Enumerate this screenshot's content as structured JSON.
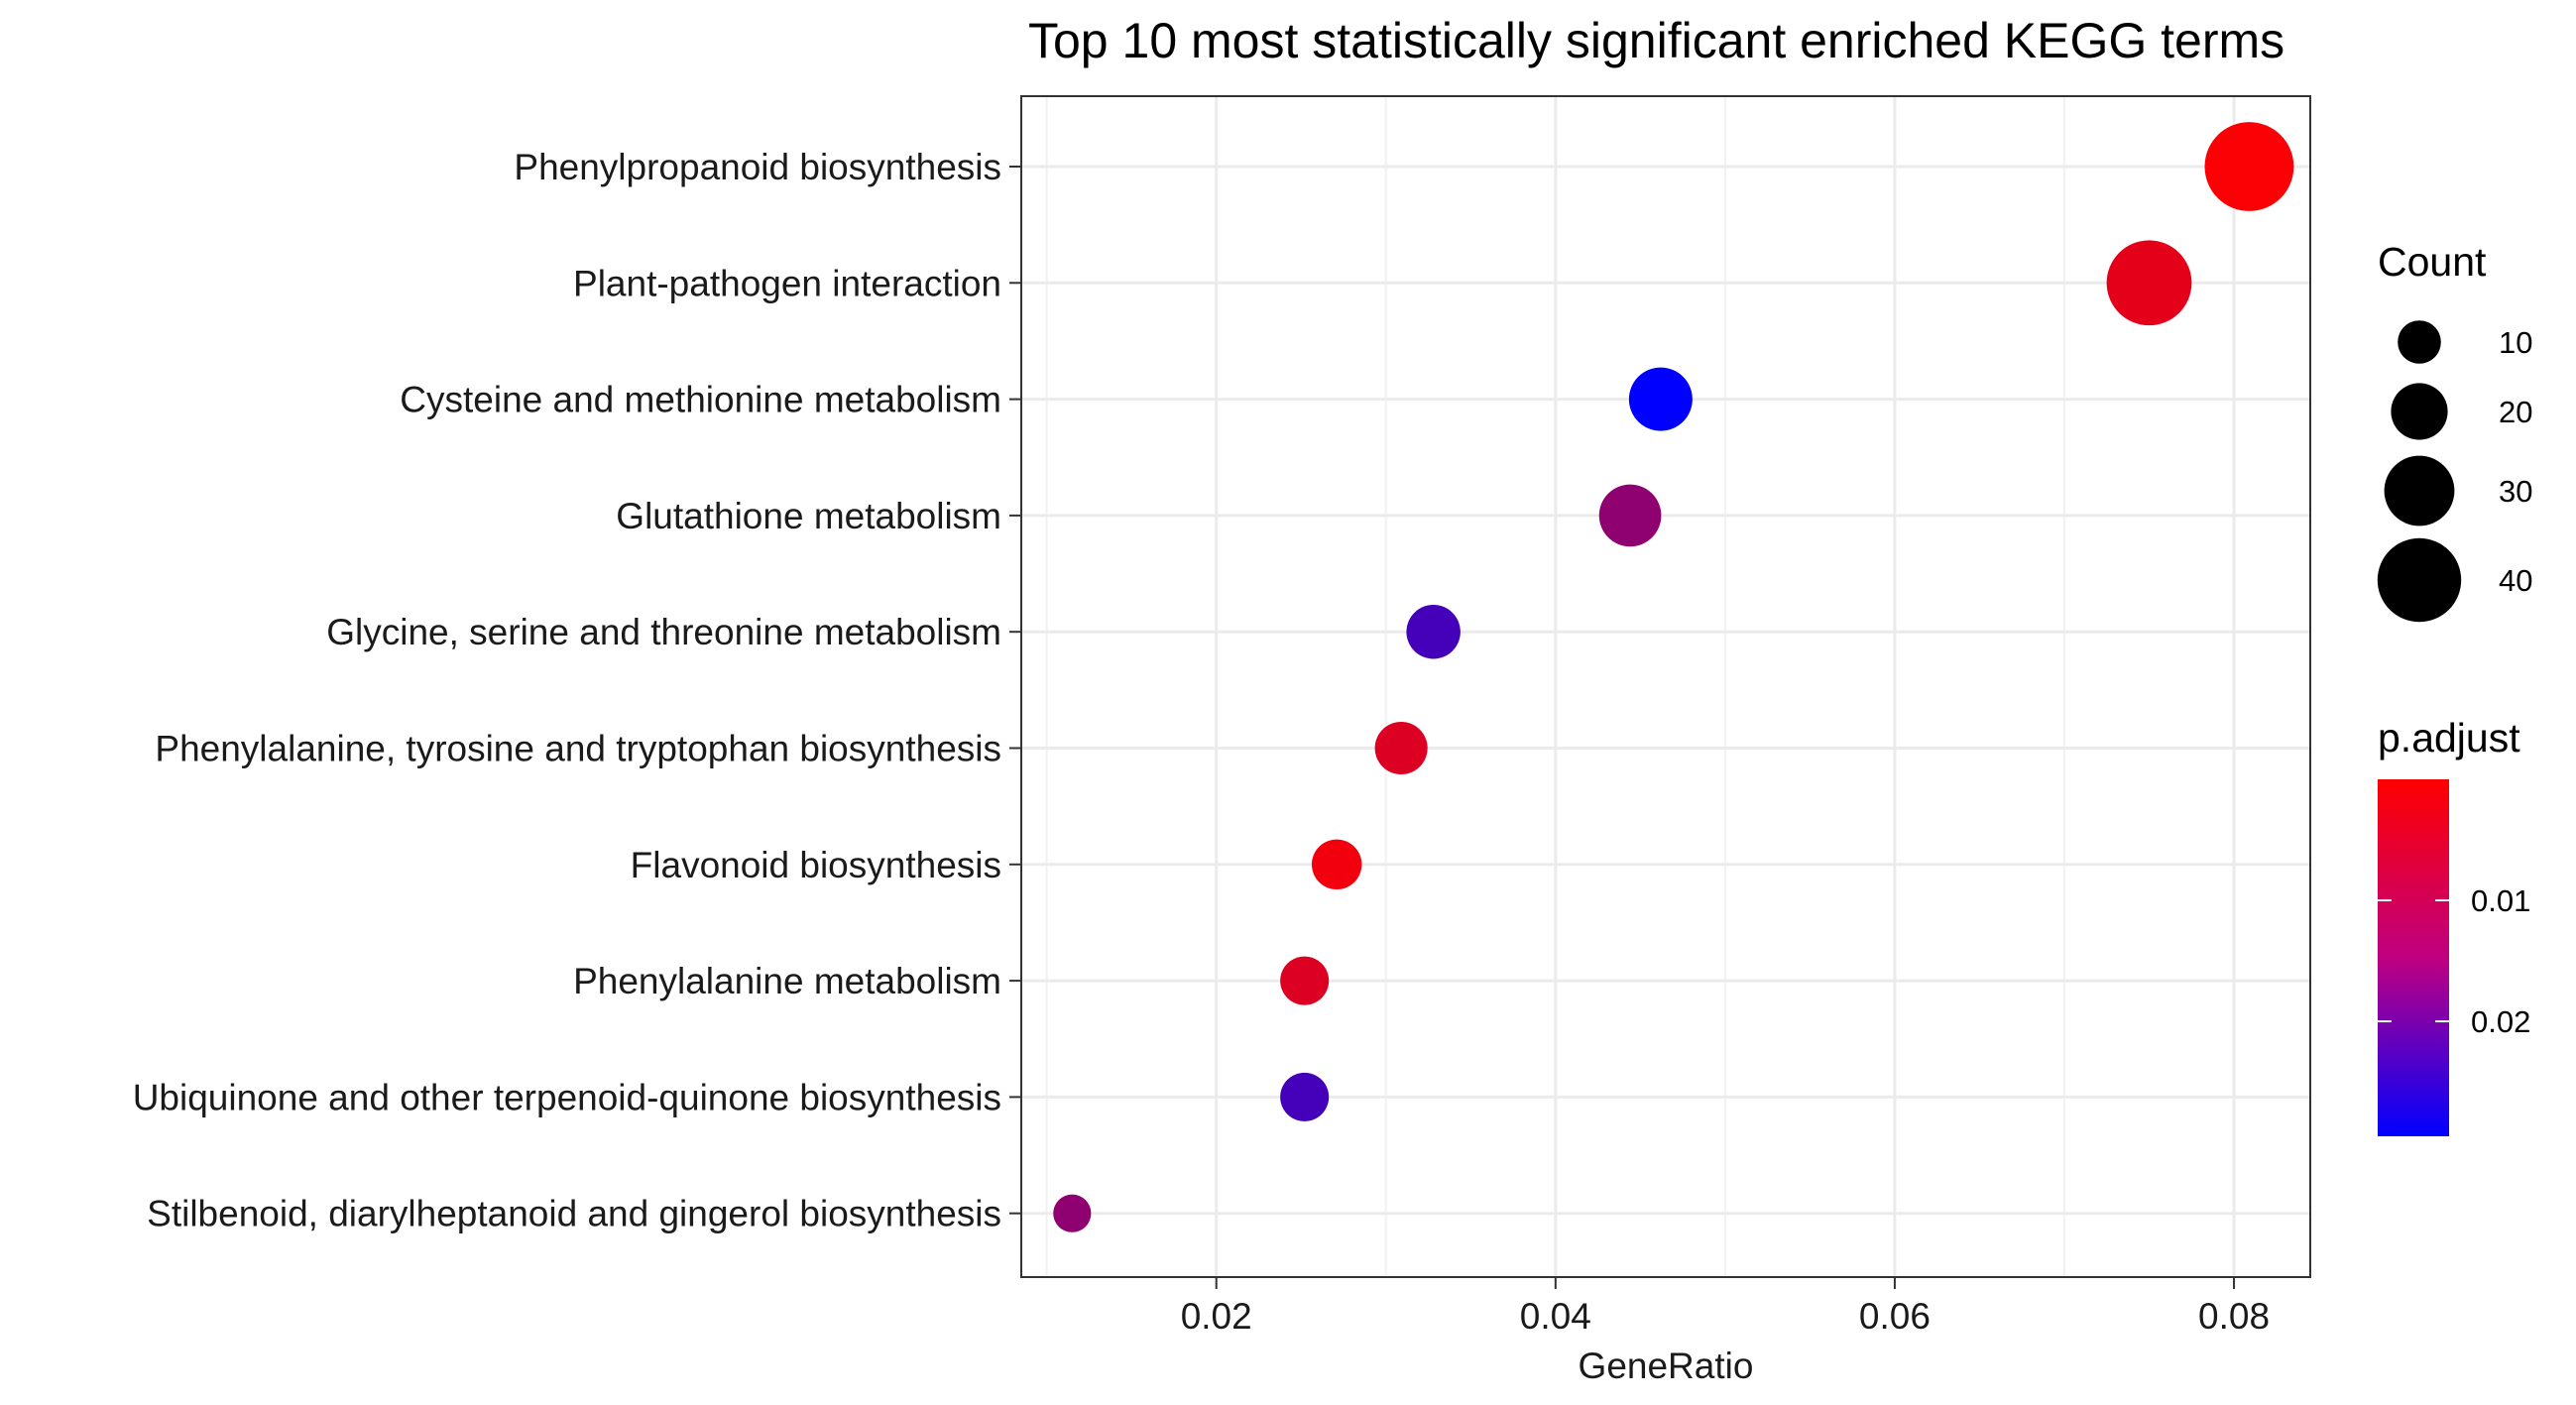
{
  "chart_data": {
    "type": "scatter",
    "title": "Top 10 most statistically significant enriched KEGG terms",
    "xlabel": "GeneRatio",
    "ylabel": "",
    "xlim": [
      0.0085,
      0.0845
    ],
    "x_ticks": [
      "0.02",
      "0.04",
      "0.06",
      "0.08"
    ],
    "x_tick_values": [
      0.02,
      0.04,
      0.06,
      0.08
    ],
    "grid": true,
    "categories": [
      "Phenylpropanoid biosynthesis",
      "Plant-pathogen interaction",
      "Cysteine and methionine metabolism",
      "Glutathione metabolism",
      "Glycine, serine and threonine metabolism",
      "Phenylalanine, tyrosine and tryptophan biosynthesis",
      "Flavonoid biosynthesis",
      "Phenylalanine metabolism",
      "Ubiquinone and other terpenoid-quinone biosynthesis",
      "Stilbenoid, diarylheptanoid and gingerol biosynthesis"
    ],
    "points": [
      {
        "term": "Phenylpropanoid biosynthesis",
        "gene_ratio": 0.0809,
        "count": 44,
        "p_adjust": 0.0005
      },
      {
        "term": "Plant-pathogen interaction",
        "gene_ratio": 0.075,
        "count": 41,
        "p_adjust": 0.003
      },
      {
        "term": "Cysteine and methionine metabolism",
        "gene_ratio": 0.0462,
        "count": 25,
        "p_adjust": 0.0295
      },
      {
        "term": "Glutathione metabolism",
        "gene_ratio": 0.0444,
        "count": 24,
        "p_adjust": 0.013
      },
      {
        "term": "Glycine, serine and threonine metabolism",
        "gene_ratio": 0.0328,
        "count": 18,
        "p_adjust": 0.0215
      },
      {
        "term": "Phenylalanine, tyrosine and tryptophan biosynthesis",
        "gene_ratio": 0.0309,
        "count": 17,
        "p_adjust": 0.004
      },
      {
        "term": "Flavonoid biosynthesis",
        "gene_ratio": 0.0271,
        "count": 15,
        "p_adjust": 0.0015
      },
      {
        "term": "Phenylalanine metabolism",
        "gene_ratio": 0.0252,
        "count": 14,
        "p_adjust": 0.004
      },
      {
        "term": "Ubiquinone and other terpenoid-quinone biosynthesis",
        "gene_ratio": 0.0252,
        "count": 14,
        "p_adjust": 0.0215
      },
      {
        "term": "Stilbenoid, diarylheptanoid and gingerol biosynthesis",
        "gene_ratio": 0.0115,
        "count": 6,
        "p_adjust": 0.013
      }
    ],
    "legend_placement": "right",
    "size_legend": {
      "title": "Count",
      "labels": [
        "10",
        "20",
        "30",
        "40"
      ],
      "values": [
        10,
        20,
        30,
        40
      ]
    },
    "color_legend": {
      "title": "p.adjust",
      "labels": [
        "0.01",
        "0.02"
      ],
      "values": [
        0.01,
        0.02
      ],
      "range": [
        0.0,
        0.0295
      ],
      "low_color": "#FF0000",
      "high_color": "#0000FF"
    }
  }
}
